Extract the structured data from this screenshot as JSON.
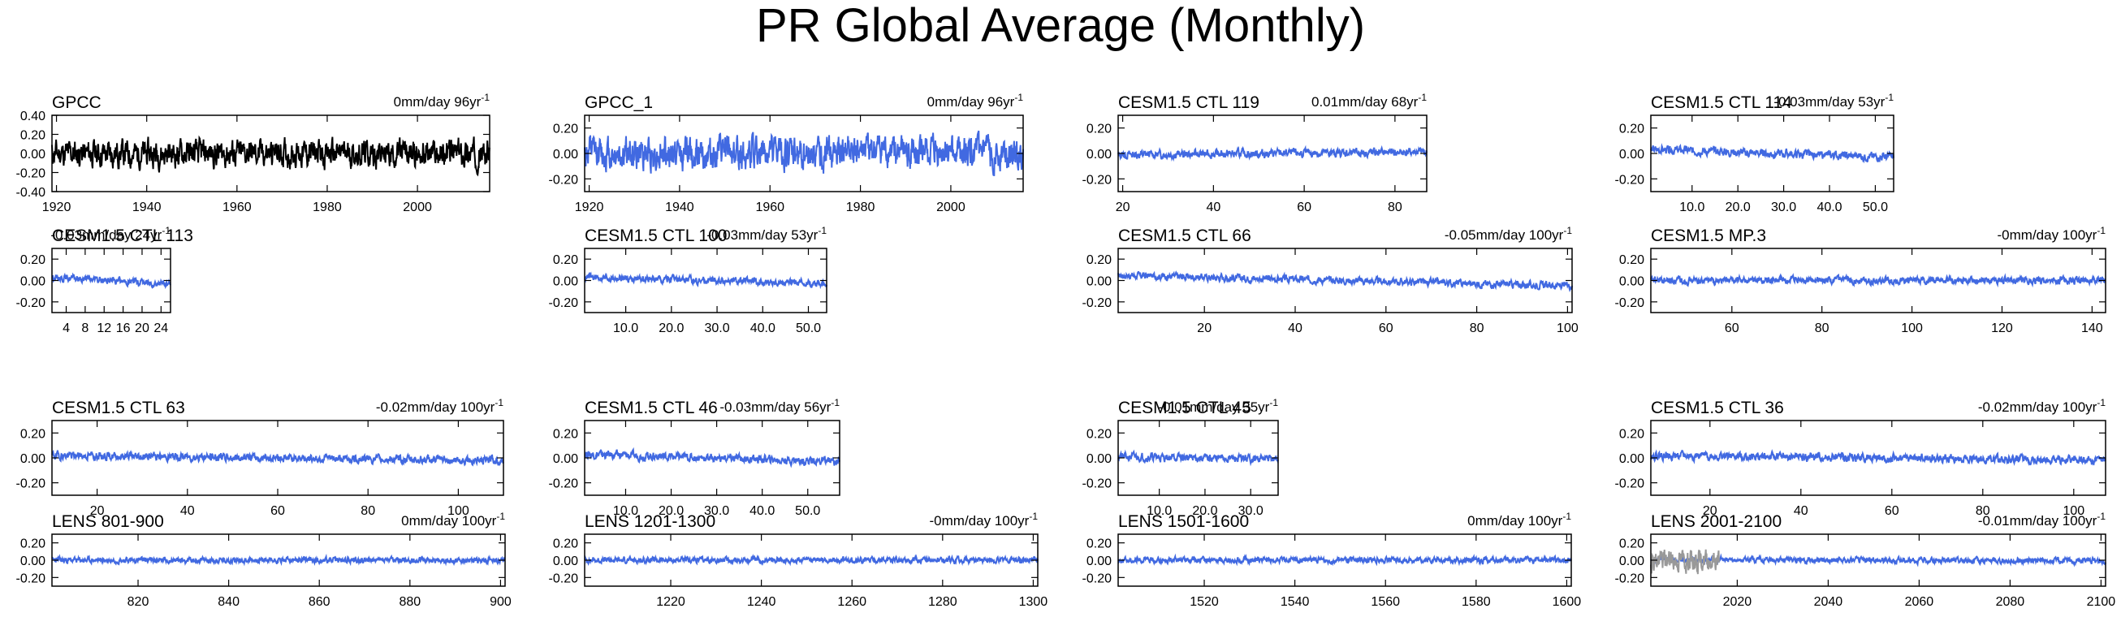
{
  "title": "PR Global Average (Monthly)",
  "colors": {
    "series": "#4169E1",
    "obs": "#000000",
    "secondary": "#999999"
  },
  "chart_data": [
    {
      "type": "line",
      "title": "GPCC",
      "trend_text": "0mm/day 96yr",
      "trend_exp": "-1",
      "xlim": [
        1919,
        2016
      ],
      "ylim": [
        -0.4,
        0.4
      ],
      "xticks": [
        1920,
        1940,
        1960,
        1980,
        2000
      ],
      "xtick_labels": [
        "1920",
        "1940",
        "1960",
        "1980",
        "2000"
      ],
      "yticks": [
        -0.4,
        -0.2,
        0,
        0.2,
        0.4
      ],
      "ytick_labels": [
        "-0.40",
        "-0.20",
        "0.00",
        "0.20",
        "0.40"
      ],
      "amp": 0.11,
      "trend": 0.0,
      "color": "obs",
      "seed": 11
    },
    {
      "type": "line",
      "title": "GPCC_1",
      "trend_text": "0mm/day 96yr",
      "trend_exp": "-1",
      "xlim": [
        1919,
        2016
      ],
      "ylim": [
        -0.3,
        0.3
      ],
      "xticks": [
        1920,
        1940,
        1960,
        1980,
        2000
      ],
      "xtick_labels": [
        "1920",
        "1940",
        "1960",
        "1980",
        "2000"
      ],
      "yticks": [
        -0.2,
        0,
        0.2
      ],
      "ytick_labels": [
        "-0.20",
        "0.00",
        "0.20"
      ],
      "amp": 0.1,
      "trend": 0.0,
      "color": "series",
      "seed": 12
    },
    {
      "type": "line",
      "title": "CESM1.5 CTL 119",
      "trend_text": "0.01mm/day 68yr",
      "trend_exp": "-1",
      "xlim": [
        19,
        87
      ],
      "ylim": [
        -0.3,
        0.3
      ],
      "xticks": [
        20,
        40,
        60,
        80
      ],
      "xtick_labels": [
        "20",
        "40",
        "60",
        "80"
      ],
      "yticks": [
        -0.2,
        0,
        0.2
      ],
      "ytick_labels": [
        "-0.20",
        "0.00",
        "0.20"
      ],
      "amp": 0.025,
      "trend": 0.01,
      "color": "series",
      "seed": 13
    },
    {
      "type": "line",
      "title": "CESM1.5 CTL 114",
      "trend_text": "-0.03mm/day 53yr",
      "trend_exp": "-1",
      "xlim": [
        1,
        54
      ],
      "ylim": [
        -0.3,
        0.3
      ],
      "xticks": [
        10,
        20,
        30,
        40,
        50
      ],
      "xtick_labels": [
        "10.0",
        "20.0",
        "30.0",
        "40.0",
        "50.0"
      ],
      "yticks": [
        -0.2,
        0,
        0.2
      ],
      "ytick_labels": [
        "-0.20",
        "0.00",
        "0.20"
      ],
      "amp": 0.025,
      "trend": -0.03,
      "color": "series",
      "seed": 14
    },
    {
      "type": "line",
      "title": "CESM1.5 CTL 113",
      "trend_text": "-0.03mm/day 24yr",
      "trend_exp": "-1",
      "xlim": [
        1,
        26
      ],
      "ylim": [
        -0.3,
        0.3
      ],
      "xticks": [
        4,
        8,
        12,
        16,
        20,
        24
      ],
      "xtick_labels": [
        "4",
        "8",
        "12",
        "16",
        "20",
        "24"
      ],
      "yticks": [
        -0.2,
        0,
        0.2
      ],
      "ytick_labels": [
        "-0.20",
        "0.00",
        "0.20"
      ],
      "amp": 0.025,
      "trend": -0.03,
      "color": "series",
      "seed": 15
    },
    {
      "type": "line",
      "title": "CESM1.5 CTL 100",
      "trend_text": "-0.03mm/day 53yr",
      "trend_exp": "-1",
      "xlim": [
        1,
        54
      ],
      "ylim": [
        -0.3,
        0.3
      ],
      "xticks": [
        10,
        20,
        30,
        40,
        50
      ],
      "xtick_labels": [
        "10.0",
        "20.0",
        "30.0",
        "40.0",
        "50.0"
      ],
      "yticks": [
        -0.2,
        0,
        0.2
      ],
      "ytick_labels": [
        "-0.20",
        "0.00",
        "0.20"
      ],
      "amp": 0.025,
      "trend": -0.03,
      "color": "series",
      "seed": 16
    },
    {
      "type": "line",
      "title": "CESM1.5 CTL 66",
      "trend_text": "-0.05mm/day 100yr",
      "trend_exp": "-1",
      "xlim": [
        1,
        101
      ],
      "ylim": [
        -0.3,
        0.3
      ],
      "xticks": [
        20,
        40,
        60,
        80,
        100
      ],
      "xtick_labels": [
        "20",
        "40",
        "60",
        "80",
        "100"
      ],
      "yticks": [
        -0.2,
        0,
        0.2
      ],
      "ytick_labels": [
        "-0.20",
        "0.00",
        "0.20"
      ],
      "amp": 0.025,
      "trend": -0.05,
      "color": "series",
      "seed": 17
    },
    {
      "type": "line",
      "title": "CESM1.5 MP.3",
      "trend_text": "-0mm/day 100yr",
      "trend_exp": "-1",
      "xlim": [
        42,
        143
      ],
      "ylim": [
        -0.3,
        0.3
      ],
      "xticks": [
        60,
        80,
        100,
        120,
        140
      ],
      "xtick_labels": [
        "60",
        "80",
        "100",
        "120",
        "140"
      ],
      "yticks": [
        -0.2,
        0,
        0.2
      ],
      "ytick_labels": [
        "-0.20",
        "0.00",
        "0.20"
      ],
      "amp": 0.025,
      "trend": 0.0,
      "color": "series",
      "seed": 18
    },
    {
      "type": "line",
      "title": "CESM1.5 CTL 63",
      "trend_text": "-0.02mm/day 100yr",
      "trend_exp": "-1",
      "xlim": [
        10,
        110
      ],
      "ylim": [
        -0.3,
        0.3
      ],
      "xticks": [
        20,
        40,
        60,
        80,
        100
      ],
      "xtick_labels": [
        "20",
        "40",
        "60",
        "80",
        "100"
      ],
      "yticks": [
        -0.2,
        0,
        0.2
      ],
      "ytick_labels": [
        "-0.20",
        "0.00",
        "0.20"
      ],
      "amp": 0.025,
      "trend": -0.02,
      "color": "series",
      "seed": 19
    },
    {
      "type": "line",
      "title": "CESM1.5 CTL 46",
      "trend_text": "-0.03mm/day 56yr",
      "trend_exp": "-1",
      "xlim": [
        1,
        57
      ],
      "ylim": [
        -0.3,
        0.3
      ],
      "xticks": [
        10,
        20,
        30,
        40,
        50
      ],
      "xtick_labels": [
        "10.0",
        "20.0",
        "30.0",
        "40.0",
        "50.0"
      ],
      "yticks": [
        -0.2,
        0,
        0.2
      ],
      "ytick_labels": [
        "-0.20",
        "0.00",
        "0.20"
      ],
      "amp": 0.025,
      "trend": -0.03,
      "color": "series",
      "seed": 20
    },
    {
      "type": "line",
      "title": "CESM1.5 CTL 45",
      "trend_text": "-0.01mm/day 35yr",
      "trend_exp": "-1",
      "xlim": [
        1,
        36
      ],
      "ylim": [
        -0.3,
        0.3
      ],
      "xticks": [
        10,
        20,
        30
      ],
      "xtick_labels": [
        "10.0",
        "20.0",
        "30.0"
      ],
      "yticks": [
        -0.2,
        0,
        0.2
      ],
      "ytick_labels": [
        "-0.20",
        "0.00",
        "0.20"
      ],
      "amp": 0.025,
      "trend": -0.01,
      "color": "series",
      "seed": 21
    },
    {
      "type": "line",
      "title": "CESM1.5 CTL 36",
      "trend_text": "-0.02mm/day 100yr",
      "trend_exp": "-1",
      "xlim": [
        7,
        107
      ],
      "ylim": [
        -0.3,
        0.3
      ],
      "xticks": [
        20,
        40,
        60,
        80,
        100
      ],
      "xtick_labels": [
        "20",
        "40",
        "60",
        "80",
        "100"
      ],
      "yticks": [
        -0.2,
        0,
        0.2
      ],
      "ytick_labels": [
        "-0.20",
        "0.00",
        "0.20"
      ],
      "amp": 0.025,
      "trend": -0.02,
      "color": "series",
      "seed": 22
    },
    {
      "type": "line",
      "title": "LENS 801-900",
      "trend_text": "0mm/day 100yr",
      "trend_exp": "-1",
      "xlim": [
        801,
        901
      ],
      "ylim": [
        -0.3,
        0.3
      ],
      "xticks": [
        820,
        840,
        860,
        880,
        900
      ],
      "xtick_labels": [
        "820",
        "840",
        "860",
        "880",
        "900"
      ],
      "yticks": [
        -0.2,
        0,
        0.2
      ],
      "ytick_labels": [
        "-0.20",
        "0.00",
        "0.20"
      ],
      "amp": 0.025,
      "trend": 0.0,
      "color": "series",
      "seed": 23
    },
    {
      "type": "line",
      "title": "LENS 1201-1300",
      "trend_text": "-0mm/day 100yr",
      "trend_exp": "-1",
      "xlim": [
        1201,
        1301
      ],
      "ylim": [
        -0.3,
        0.3
      ],
      "xticks": [
        1220,
        1240,
        1260,
        1280,
        1300
      ],
      "xtick_labels": [
        "1220",
        "1240",
        "1260",
        "1280",
        "1300"
      ],
      "yticks": [
        -0.2,
        0,
        0.2
      ],
      "ytick_labels": [
        "-0.20",
        "0.00",
        "0.20"
      ],
      "amp": 0.025,
      "trend": 0.0,
      "color": "series",
      "seed": 24
    },
    {
      "type": "line",
      "title": "LENS 1501-1600",
      "trend_text": "0mm/day 100yr",
      "trend_exp": "-1",
      "xlim": [
        1501,
        1601
      ],
      "ylim": [
        -0.3,
        0.3
      ],
      "xticks": [
        1520,
        1540,
        1560,
        1580,
        1600
      ],
      "xtick_labels": [
        "1520",
        "1540",
        "1560",
        "1580",
        "1600"
      ],
      "yticks": [
        -0.2,
        0,
        0.2
      ],
      "ytick_labels": [
        "-0.20",
        "0.00",
        "0.20"
      ],
      "amp": 0.025,
      "trend": 0.0,
      "color": "series",
      "seed": 25
    },
    {
      "type": "line",
      "title": "LENS 2001-2100",
      "trend_text": "-0.01mm/day 100yr",
      "trend_exp": "-1",
      "xlim": [
        2001,
        2101
      ],
      "ylim": [
        -0.3,
        0.3
      ],
      "xticks": [
        2020,
        2040,
        2060,
        2080,
        2100
      ],
      "xtick_labels": [
        "2020",
        "2040",
        "2060",
        "2080",
        "2100"
      ],
      "yticks": [
        -0.2,
        0,
        0.2
      ],
      "ytick_labels": [
        "-0.20",
        "0.00",
        "0.20"
      ],
      "amp": 0.025,
      "trend": -0.01,
      "color": "series",
      "seed": 26,
      "overlay": {
        "color": "secondary",
        "xlim": [
          2001,
          2016
        ],
        "amp": 0.1
      }
    }
  ]
}
